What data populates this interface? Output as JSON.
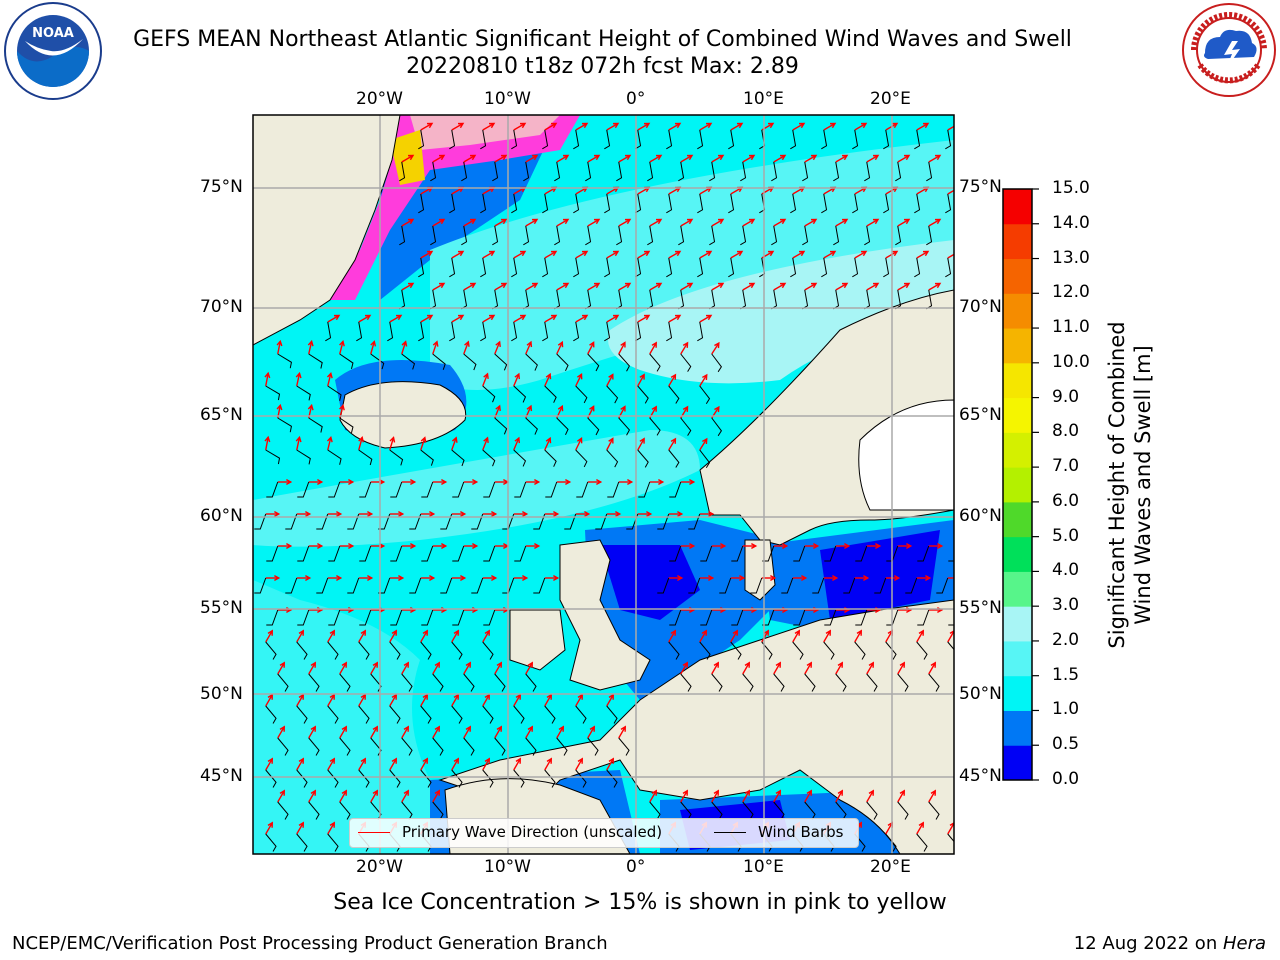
{
  "header": {
    "title_line1": "GEFS MEAN Northeast Atlantic Significant Height of Combined Wind Waves and Swell",
    "title_line2": "20220810 t18z 072h fcst   Max: 2.89"
  },
  "logos": {
    "left": {
      "name": "NOAA",
      "ring_text": "NATIONAL OCEANIC AND ATMOSPHERIC ADMINISTRATION · U.S. DEPARTMENT OF COMMERCE"
    },
    "right": {
      "name": "NATIONAL WEATHER SERVICE"
    }
  },
  "map": {
    "lon_ticks_top": [
      "20°W",
      "10°W",
      "0°",
      "10°E",
      "20°E"
    ],
    "lon_ticks_bottom": [
      "20°W",
      "10°W",
      "0°",
      "10°E",
      "20°E"
    ],
    "lat_ticks_left": [
      "75°N",
      "70°N",
      "65°N",
      "60°N",
      "55°N",
      "50°N",
      "45°N"
    ],
    "lat_ticks_right": [
      "75°N",
      "70°N",
      "65°N",
      "60°N",
      "55°N",
      "50°N",
      "45°N"
    ],
    "grid": true,
    "land_color": "#eeecdc",
    "legend": {
      "items": [
        {
          "label": "Primary Wave Direction (unscaled)",
          "color": "#ff0000"
        },
        {
          "label": "Wind Barbs",
          "color": "#000000"
        }
      ]
    }
  },
  "colorbar": {
    "title_line1": "Significant Height of Combined",
    "title_line2": "Wind Waves and Swell [m]",
    "ticks": [
      "15.0",
      "14.0",
      "13.0",
      "12.0",
      "11.0",
      "10.0",
      "9.0",
      "8.0",
      "7.0",
      "6.0",
      "5.0",
      "4.0",
      "3.0",
      "2.0",
      "1.5",
      "1.0",
      "0.5",
      "0.0"
    ],
    "bins": [
      {
        "range": "0.0-0.5",
        "color": "#0000f5"
      },
      {
        "range": "0.5-1.0",
        "color": "#0078f5"
      },
      {
        "range": "1.0-1.5",
        "color": "#00f5f5"
      },
      {
        "range": "1.5-2.0",
        "color": "#57f5f5"
      },
      {
        "range": "2.0-3.0",
        "color": "#a8f5f5"
      },
      {
        "range": "3.0-4.0",
        "color": "#57f58a"
      },
      {
        "range": "4.0-5.0",
        "color": "#00e05a"
      },
      {
        "range": "5.0-6.0",
        "color": "#4fd92a"
      },
      {
        "range": "6.0-7.0",
        "color": "#b4f000"
      },
      {
        "range": "7.0-8.0",
        "color": "#d4f000"
      },
      {
        "range": "8.0-9.0",
        "color": "#f5f500"
      },
      {
        "range": "9.0-10.0",
        "color": "#f5e600"
      },
      {
        "range": "10.0-11.0",
        "color": "#f5b400"
      },
      {
        "range": "11.0-12.0",
        "color": "#f58c00"
      },
      {
        "range": "12.0-13.0",
        "color": "#f56400"
      },
      {
        "range": "13.0-14.0",
        "color": "#f53c00"
      },
      {
        "range": "14.0-15.0",
        "color": "#f50000"
      }
    ]
  },
  "notes": {
    "ice": "Sea Ice Concentration > 15% is shown in pink to yellow"
  },
  "footer": {
    "left": "NCEP/EMC/Verification Post Processing Product Generation Branch",
    "right_date": "12 Aug 2022 on ",
    "right_host": "Hera"
  }
}
